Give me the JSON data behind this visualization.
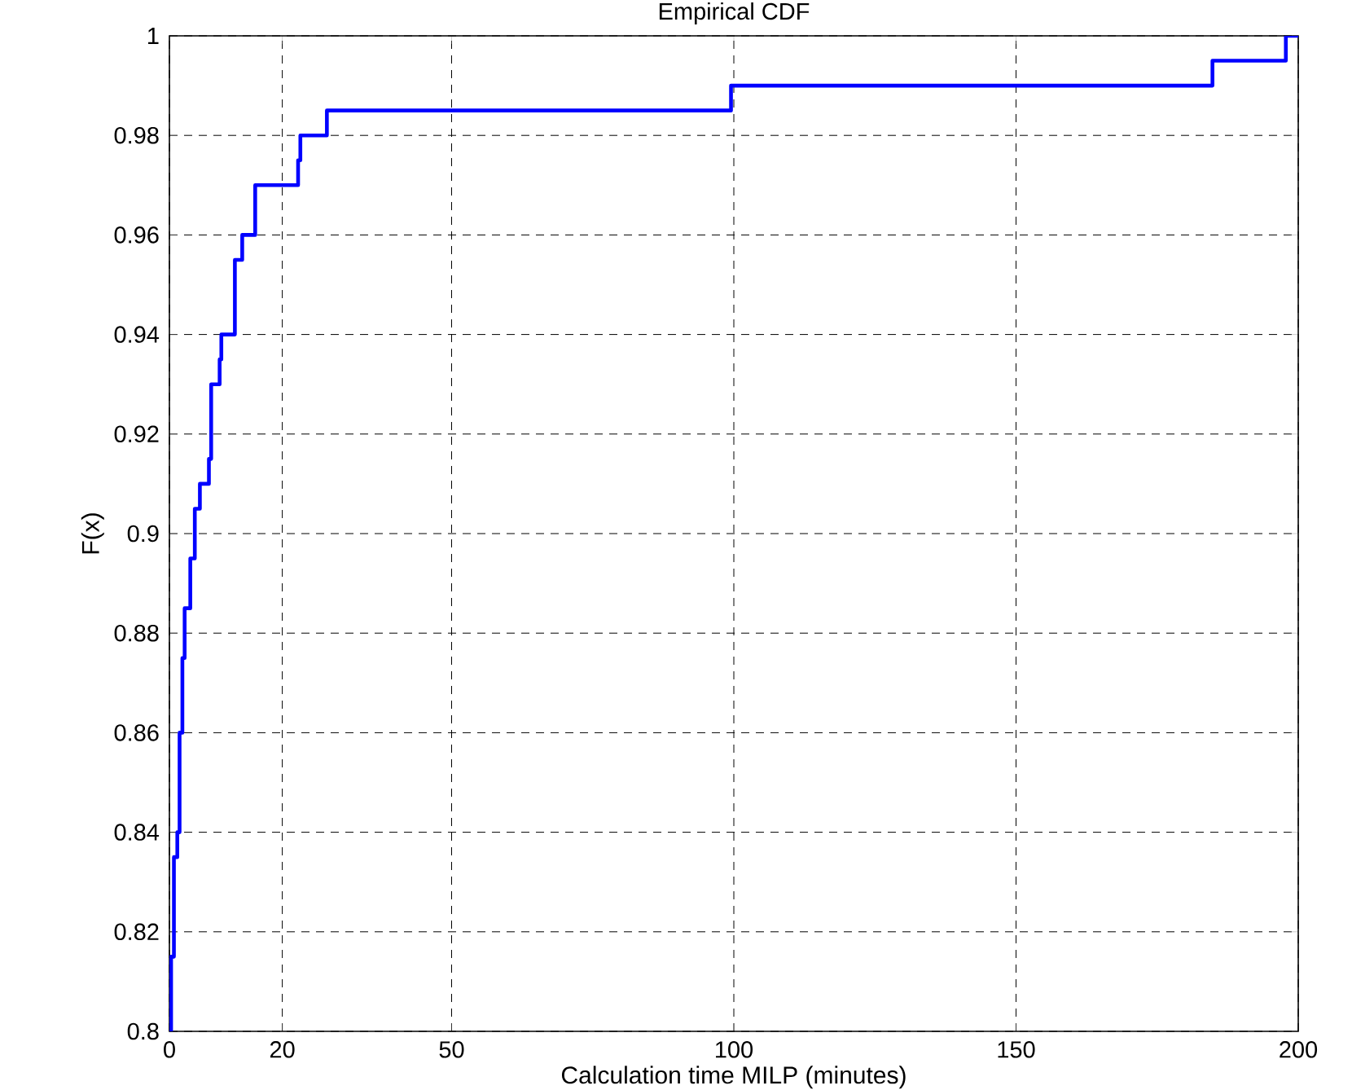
{
  "chart_data": {
    "type": "step",
    "title": "Empirical CDF",
    "xlabel": "Calculation time MILP (minutes)",
    "ylabel": "F(x)",
    "x": [
      0.3,
      0.3,
      0.8,
      1.4,
      1.8,
      2.3,
      2.7,
      3.7,
      4.5,
      5.4,
      7.0,
      7.4,
      8.9,
      9.2,
      11.6,
      12.9,
      15.2,
      22.8,
      23.2,
      27.9,
      99.5,
      184.8,
      197.8,
      200
    ],
    "values": [
      0.8,
      0.815,
      0.835,
      0.84,
      0.86,
      0.875,
      0.885,
      0.895,
      0.905,
      0.91,
      0.915,
      0.93,
      0.935,
      0.94,
      0.955,
      0.96,
      0.97,
      0.975,
      0.98,
      0.985,
      0.99,
      0.995,
      1,
      1
    ],
    "color": "#0000ff",
    "xlim": [
      0,
      200
    ],
    "xticks": [
      0,
      20,
      50,
      100,
      150,
      200
    ],
    "ylim": [
      0.8,
      1
    ],
    "yticks": [
      0.8,
      0.82,
      0.84,
      0.86,
      0.88,
      0.9,
      0.92,
      0.94,
      0.96,
      0.98,
      1
    ],
    "grid": true,
    "line_style": "solid",
    "marker": "none"
  }
}
